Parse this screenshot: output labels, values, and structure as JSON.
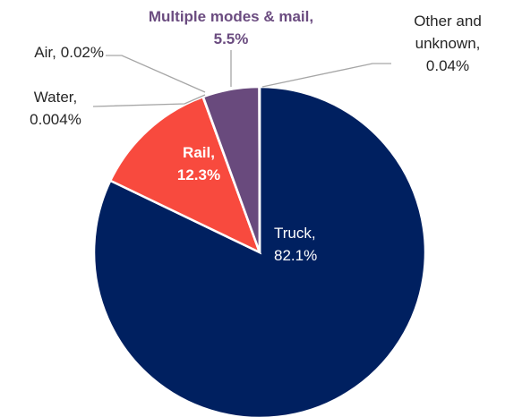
{
  "chart_data": {
    "type": "pie",
    "categories": [
      "Truck,",
      "Rail,",
      "Water,",
      "Air,",
      "Multiple modes & mail,",
      "Other and unknown,"
    ],
    "values": [
      82.1,
      12.3,
      0.004,
      0.02,
      5.5,
      0.04
    ],
    "value_labels": [
      "82.1%",
      "12.3%",
      "0.004%",
      "0.02%",
      "5.5%",
      "0.04%"
    ],
    "colors": [
      "#002060",
      "#f84a3e",
      "#7f7f7f",
      "#a5a5a5",
      "#694a7d",
      "#bfbfbf"
    ]
  }
}
